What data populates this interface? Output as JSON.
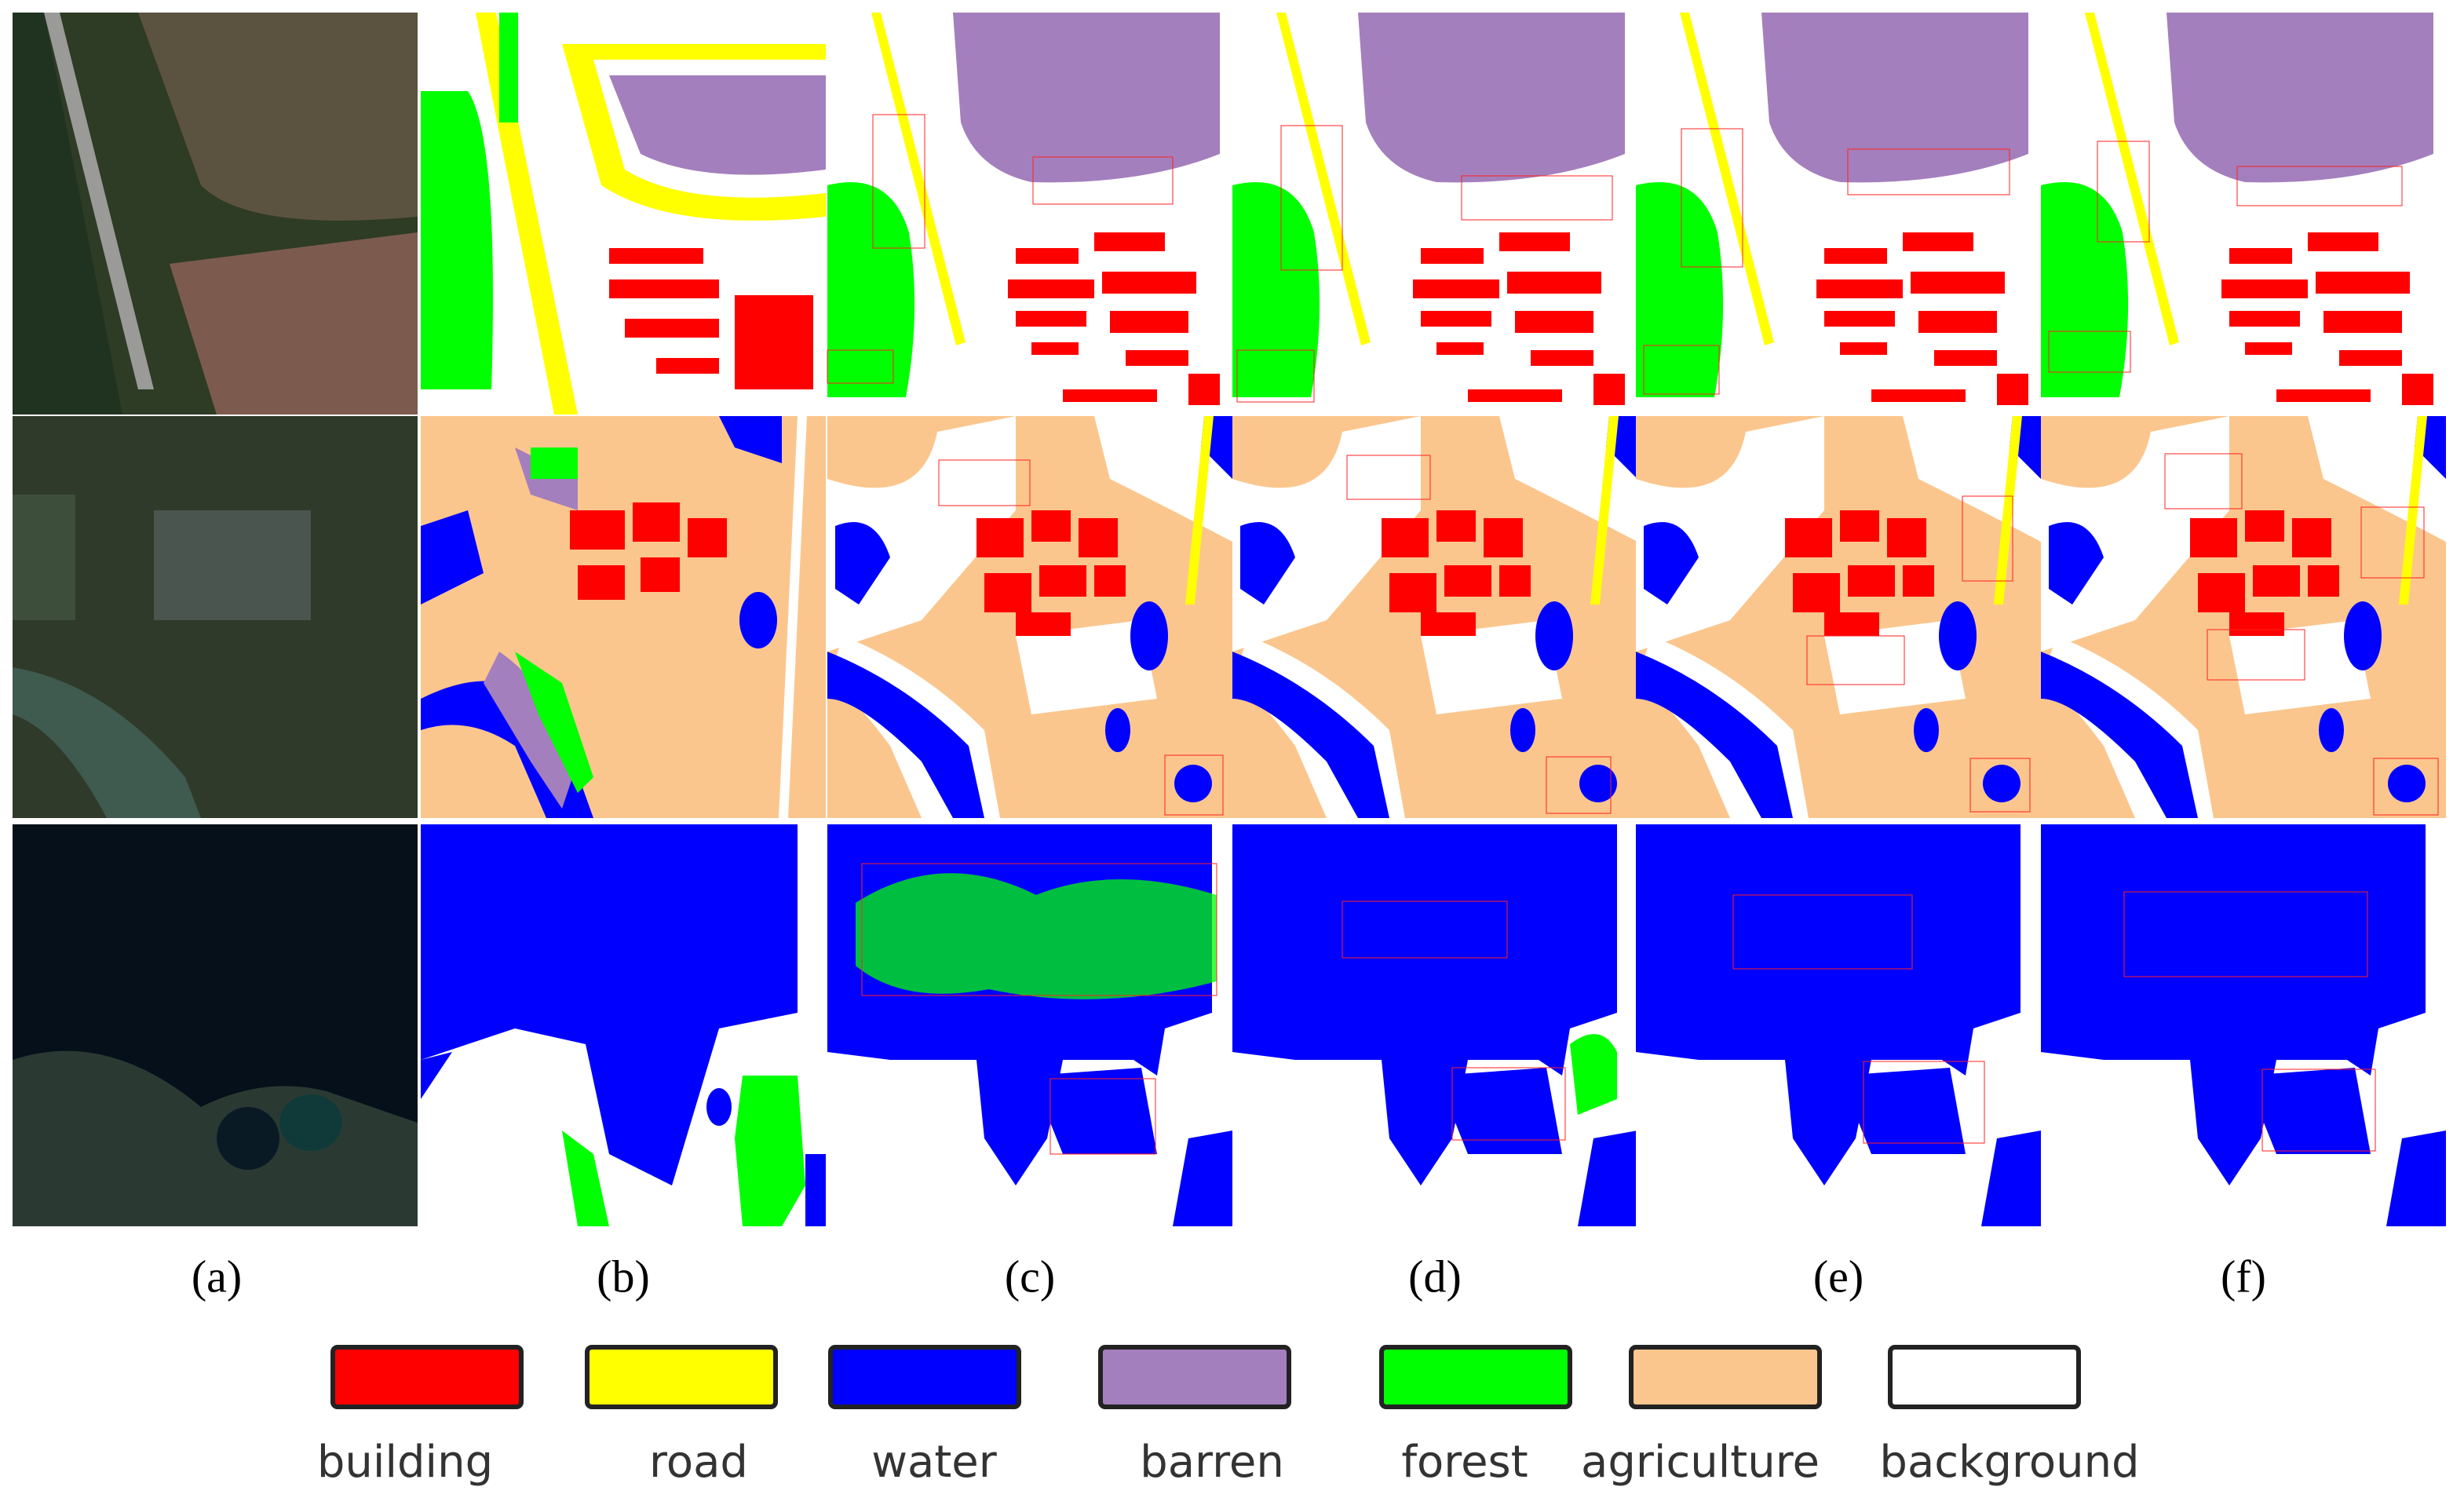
{
  "panel_labels": [
    "(a)",
    "(b)",
    "(c)",
    "(d)",
    "(e)",
    "(f)"
  ],
  "legend": [
    {
      "label": "building",
      "color": "#ff0000"
    },
    {
      "label": "road",
      "color": "#ffff00"
    },
    {
      "label": "water",
      "color": "#0000ff"
    },
    {
      "label": "barren",
      "color": "#a47fbd"
    },
    {
      "label": "forest",
      "color": "#00ff00"
    },
    {
      "label": "agriculture",
      "color": "#fbc68d"
    },
    {
      "label": "background",
      "color": "#ffffff"
    }
  ]
}
